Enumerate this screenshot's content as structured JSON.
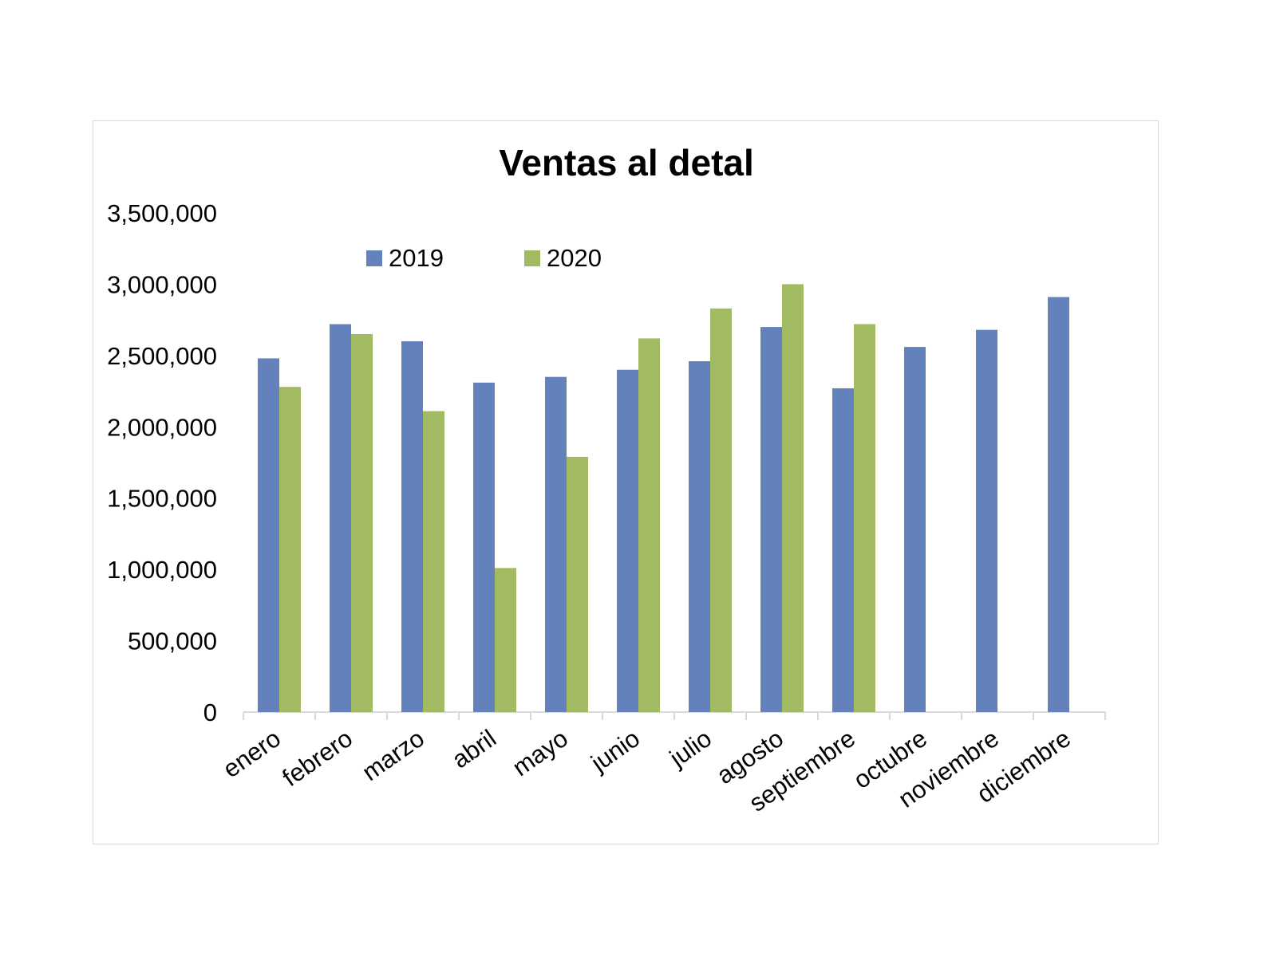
{
  "chart_data": {
    "type": "bar",
    "title": "Ventas al detal",
    "xlabel": "",
    "ylabel": "",
    "ylim": [
      0,
      3500000
    ],
    "y_ticks": [
      "0",
      "500,000",
      "1,000,000",
      "1,500,000",
      "2,000,000",
      "2,500,000",
      "3,000,000",
      "3,500,000"
    ],
    "y_tick_values": [
      0,
      500000,
      1000000,
      1500000,
      2000000,
      2500000,
      3000000,
      3500000
    ],
    "categories": [
      "enero",
      "febrero",
      "marzo",
      "abril",
      "mayo",
      "junio",
      "julio",
      "agosto",
      "septiembre",
      "octubre",
      "noviembre",
      "diciembre"
    ],
    "series": [
      {
        "name": "2019",
        "color": "#6381BB",
        "values": [
          2480000,
          2720000,
          2600000,
          2310000,
          2350000,
          2400000,
          2460000,
          2700000,
          2270000,
          2560000,
          2680000,
          2910000
        ]
      },
      {
        "name": "2020",
        "color": "#A2BA62",
        "values": [
          2280000,
          2650000,
          2110000,
          1010000,
          1790000,
          2620000,
          2830000,
          3000000,
          2720000,
          null,
          null,
          null
        ]
      }
    ],
    "grid": false,
    "legend_position": "top-center"
  }
}
